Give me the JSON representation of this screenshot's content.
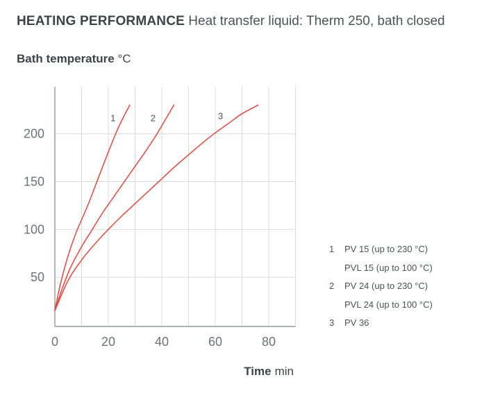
{
  "title": {
    "bold": "HEATING PERFORMANCE",
    "rest": "Heat transfer liquid: Therm 250, bath closed"
  },
  "y_axis_title": {
    "bold": "Bath temperature",
    "unit": "°C"
  },
  "x_axis_title": {
    "bold": "Time",
    "unit": "min"
  },
  "colors": {
    "curve": "#e5463c",
    "grid": "#d9dcde",
    "axis": "#7d868a"
  },
  "chart_data": {
    "type": "line",
    "title": "HEATING PERFORMANCE Heat transfer liquid: Therm 250, bath closed",
    "xlabel": "Time min",
    "ylabel": "Bath temperature °C",
    "xlim": [
      0,
      90
    ],
    "ylim": [
      0,
      240
    ],
    "x_ticks": [
      0,
      20,
      40,
      60,
      80
    ],
    "y_ticks": [
      50,
      100,
      150,
      200
    ],
    "grid": true,
    "series": [
      {
        "name": "1",
        "x": [
          0,
          2,
          5,
          8,
          10,
          13,
          16,
          20,
          24,
          28
        ],
        "y": [
          15,
          42,
          73,
          97,
          110,
          130,
          152,
          181,
          208,
          230
        ]
      },
      {
        "name": "2",
        "x": [
          0,
          3,
          6,
          10,
          14,
          18,
          22,
          26,
          30,
          34,
          38,
          42,
          44.5
        ],
        "y": [
          15,
          40,
          61,
          82,
          100,
          118,
          134,
          150,
          166,
          182,
          199,
          218,
          230
        ]
      },
      {
        "name": "3",
        "x": [
          0,
          5,
          10,
          15,
          20,
          25,
          30,
          35,
          40,
          45,
          50,
          55,
          60,
          65,
          70,
          76
        ],
        "y": [
          15,
          47,
          68,
          85,
          100,
          114,
          127,
          140,
          153,
          166,
          178,
          190,
          201,
          211,
          221,
          230
        ]
      }
    ],
    "legend": [
      {
        "num": "1",
        "text": "PV 15 (up to 230 °C)"
      },
      {
        "num": "",
        "text": "PVL 15 (up to 100 °C)"
      },
      {
        "num": "2",
        "text": "PV 24 (up to 230 °C)"
      },
      {
        "num": "",
        "text": "PVL 24 (up to 100 °C)"
      },
      {
        "num": "3",
        "text": "PV 36"
      }
    ],
    "legend_position": "right"
  }
}
